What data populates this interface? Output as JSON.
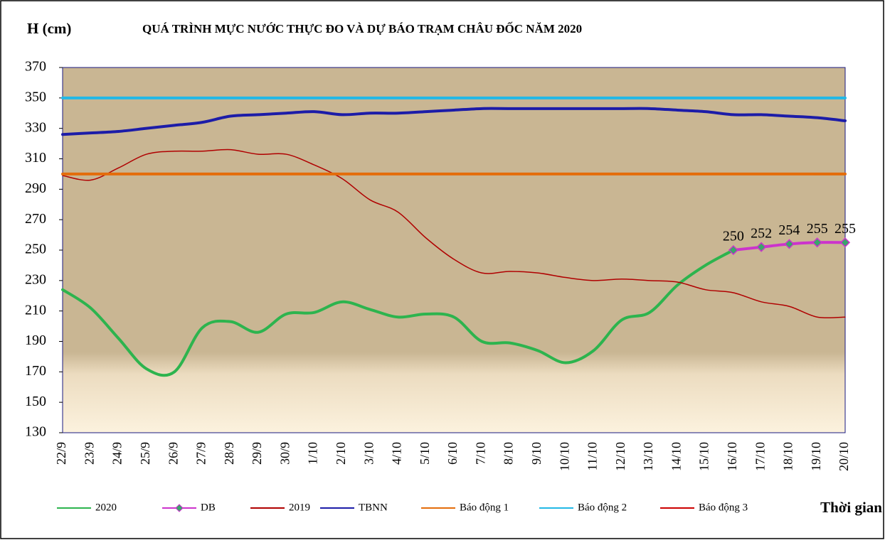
{
  "chart_data": {
    "type": "line",
    "title": "QUÁ TRÌNH MỰC NƯỚC THỰC ĐO VÀ DỰ BÁO TRẠM CHÂU ĐỐC NĂM 2020",
    "y_label": "H (cm)",
    "x_label": "Thời gian",
    "categories": [
      "22/9",
      "23/9",
      "24/9",
      "25/9",
      "26/9",
      "27/9",
      "28/9",
      "29/9",
      "30/9",
      "1/10",
      "2/10",
      "3/10",
      "4/10",
      "5/10",
      "6/10",
      "7/10",
      "8/10",
      "9/10",
      "10/10",
      "11/10",
      "12/10",
      "13/10",
      "14/10",
      "15/10",
      "16/10",
      "17/10",
      "18/10",
      "19/10",
      "20/10"
    ],
    "ylim": [
      130,
      370
    ],
    "yticks": [
      130,
      150,
      170,
      190,
      210,
      230,
      250,
      270,
      290,
      310,
      330,
      350,
      370
    ],
    "series": [
      {
        "name": "2020",
        "color": "#2db44e",
        "values": [
          224,
          212,
          192,
          172,
          170,
          199,
          203,
          196,
          208,
          209,
          216,
          211,
          206,
          208,
          206,
          190,
          189,
          184,
          176,
          184,
          204,
          209,
          227,
          240,
          250,
          null,
          null,
          null,
          null
        ]
      },
      {
        "name": "DB",
        "color": "#cc33cc",
        "marker_color": "#3aa56a",
        "values": [
          null,
          null,
          null,
          null,
          null,
          null,
          null,
          null,
          null,
          null,
          null,
          null,
          null,
          null,
          null,
          null,
          null,
          null,
          null,
          null,
          null,
          null,
          null,
          null,
          250,
          252,
          254,
          255,
          255
        ]
      },
      {
        "name": "2019",
        "color": "#b00000",
        "values": [
          299,
          296,
          304,
          313,
          315,
          315,
          316,
          313,
          313,
          306,
          297,
          283,
          275,
          258,
          244,
          235,
          236,
          235,
          232,
          230,
          231,
          230,
          229,
          224,
          222,
          216,
          213,
          206,
          206
        ]
      },
      {
        "name": "TBNN",
        "color": "#1c1ca8",
        "values": [
          326,
          327,
          328,
          330,
          332,
          334,
          338,
          339,
          340,
          341,
          339,
          340,
          340,
          341,
          342,
          343,
          343,
          343,
          343,
          343,
          343,
          343,
          342,
          341,
          339,
          339,
          338,
          337,
          335
        ]
      },
      {
        "name": "Báo động 1",
        "color": "#e46c0a",
        "values": [
          300,
          300,
          300,
          300,
          300,
          300,
          300,
          300,
          300,
          300,
          300,
          300,
          300,
          300,
          300,
          300,
          300,
          300,
          300,
          300,
          300,
          300,
          300,
          300,
          300,
          300,
          300,
          300,
          300
        ]
      },
      {
        "name": "Báo động 2",
        "color": "#22b8e6",
        "values": [
          350,
          350,
          350,
          350,
          350,
          350,
          350,
          350,
          350,
          350,
          350,
          350,
          350,
          350,
          350,
          350,
          350,
          350,
          350,
          350,
          350,
          350,
          350,
          350,
          350,
          350,
          350,
          350,
          350
        ]
      },
      {
        "name": "Báo động 3",
        "color": "#cc0000",
        "values": [
          null,
          null,
          null,
          null,
          null,
          null,
          null,
          null,
          null,
          null,
          null,
          null,
          null,
          null,
          null,
          null,
          null,
          null,
          null,
          null,
          null,
          null,
          null,
          null,
          null,
          null,
          null,
          null,
          null
        ]
      }
    ],
    "data_labels_series": 1
  }
}
